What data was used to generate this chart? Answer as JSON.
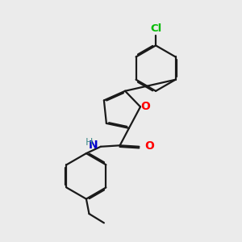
{
  "bg_color": "#ebebeb",
  "bond_color": "#1a1a1a",
  "atom_colors": {
    "O_furan": "#ff0000",
    "O_carbonyl": "#ff0000",
    "N": "#0000cc",
    "H": "#4a9090",
    "Cl": "#00bb00",
    "C": "#1a1a1a"
  },
  "line_width": 1.6,
  "dbo": 0.055,
  "figsize": [
    3.0,
    3.0
  ],
  "dpi": 100
}
